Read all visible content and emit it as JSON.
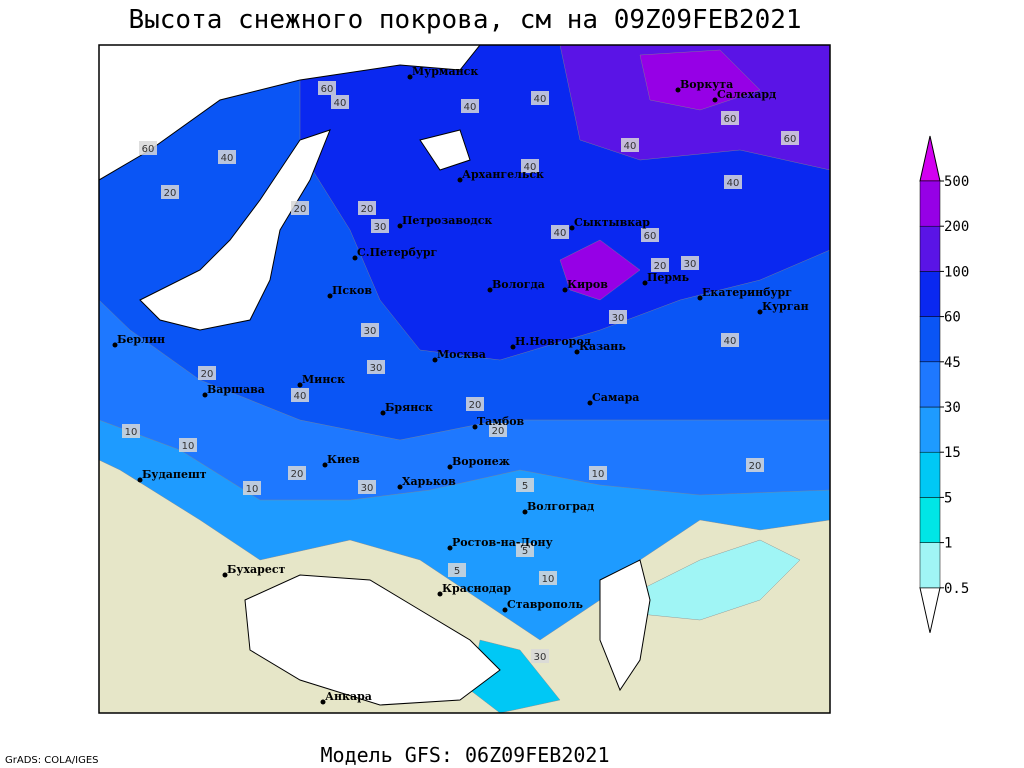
{
  "title": "Высота снежного покрова, см на 09Z09FEB2021",
  "model_label": "Модель GFS: 06Z09FEB2021",
  "credit": "GrADS: COLA/IGES",
  "legend": {
    "levels": [
      0.5,
      1,
      5,
      15,
      30,
      45,
      60,
      100,
      200,
      500
    ],
    "colors": [
      "#ffffff",
      "#a0f5f5",
      "#00e6e6",
      "#00c8f5",
      "#1e9bff",
      "#1e78ff",
      "#0a55f5",
      "#0a28f0",
      "#5a14e6",
      "#9600e6",
      "#d200f0"
    ]
  },
  "cities": [
    "Мурманск",
    "Воркута",
    "Салехард",
    "Архангельск",
    "Петрозаводск",
    "Сыктывкар",
    "С.Петербург",
    "Вологда",
    "Киров",
    "Пермь",
    "Екатеринбург",
    "Курган",
    "Псков",
    "Н.Новгород",
    "Казань",
    "Москва",
    "Берлин",
    "Варшава",
    "Минск",
    "Брянск",
    "Тамбов",
    "Самара",
    "Киев",
    "Воронеж",
    "Будапешт",
    "Харьков",
    "Волгоград",
    "Ростов-на-Дону",
    "Бухарест",
    "Краснодар",
    "Ставрополь",
    "Анкара"
  ],
  "contour_labels": [
    60,
    40,
    20,
    60,
    40,
    20,
    30,
    40,
    40,
    60,
    40,
    20,
    60,
    40,
    40,
    60,
    20,
    30,
    30,
    40,
    20,
    30,
    40,
    30,
    40,
    20,
    20,
    10,
    10,
    20,
    30,
    10,
    20,
    5,
    5,
    10,
    5,
    10,
    30
  ]
}
